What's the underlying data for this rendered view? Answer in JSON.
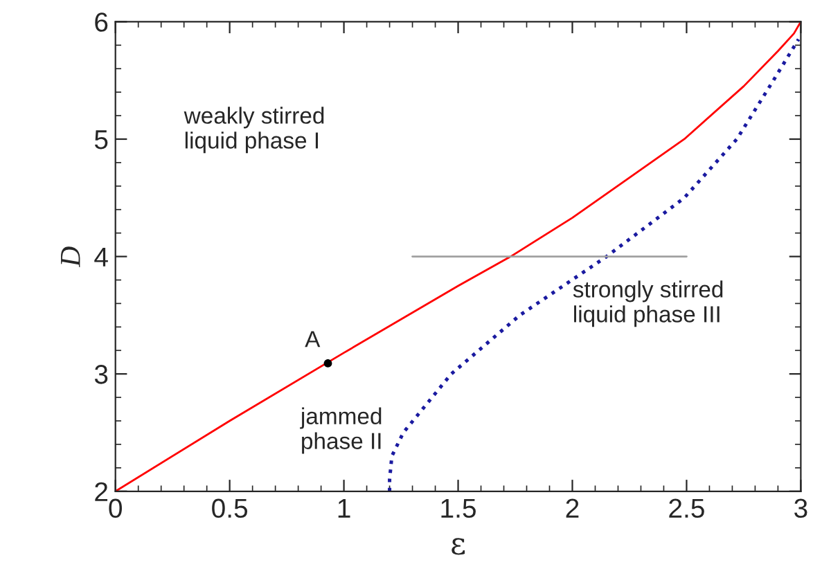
{
  "chart_data": {
    "type": "line",
    "xlabel": "ε",
    "ylabel": "D",
    "xlim": [
      0,
      3
    ],
    "ylim": [
      2,
      6
    ],
    "xticks": [
      0,
      0.5,
      1,
      1.5,
      2,
      2.5,
      3
    ],
    "yticks": [
      2,
      3,
      4,
      5,
      6
    ],
    "grid": false,
    "legend": false,
    "series": [
      {
        "color": "#ff0000",
        "line_style": "solid",
        "x": [
          0,
          0.5,
          1,
          1.5,
          1.73,
          2,
          2.49,
          2.75,
          2.9,
          2.97,
          3
        ],
        "values": [
          2,
          2.6,
          3.18,
          3.75,
          4,
          4.33,
          5,
          5.45,
          5.75,
          5.9,
          6
        ]
      },
      {
        "color": "#1a1aa0",
        "line_style": "dotted",
        "x": [
          1.2,
          1.2,
          1.21,
          1.26,
          1.47,
          1.77,
          2.15,
          2.49,
          2.72,
          2.88,
          2.99
        ],
        "values": [
          2,
          2.1,
          2.3,
          2.5,
          3,
          3.5,
          4,
          4.5,
          5,
          5.5,
          5.85
        ]
      },
      {
        "color": "#a0a0a0",
        "line_style": "solid",
        "x": [
          1.3,
          2.5
        ],
        "values": [
          4,
          4
        ]
      },
      {
        "type": "scatter",
        "color": "#000000",
        "marker": "circle",
        "x": [
          0.93
        ],
        "values": [
          3.09
        ]
      }
    ],
    "annotations": [
      {
        "text": "A",
        "x": 0.93,
        "y": 3.09
      },
      "weakly stirred\nliquid phase I",
      "jammed\nphase II",
      "strongly stirred\nliquid phase III"
    ]
  }
}
